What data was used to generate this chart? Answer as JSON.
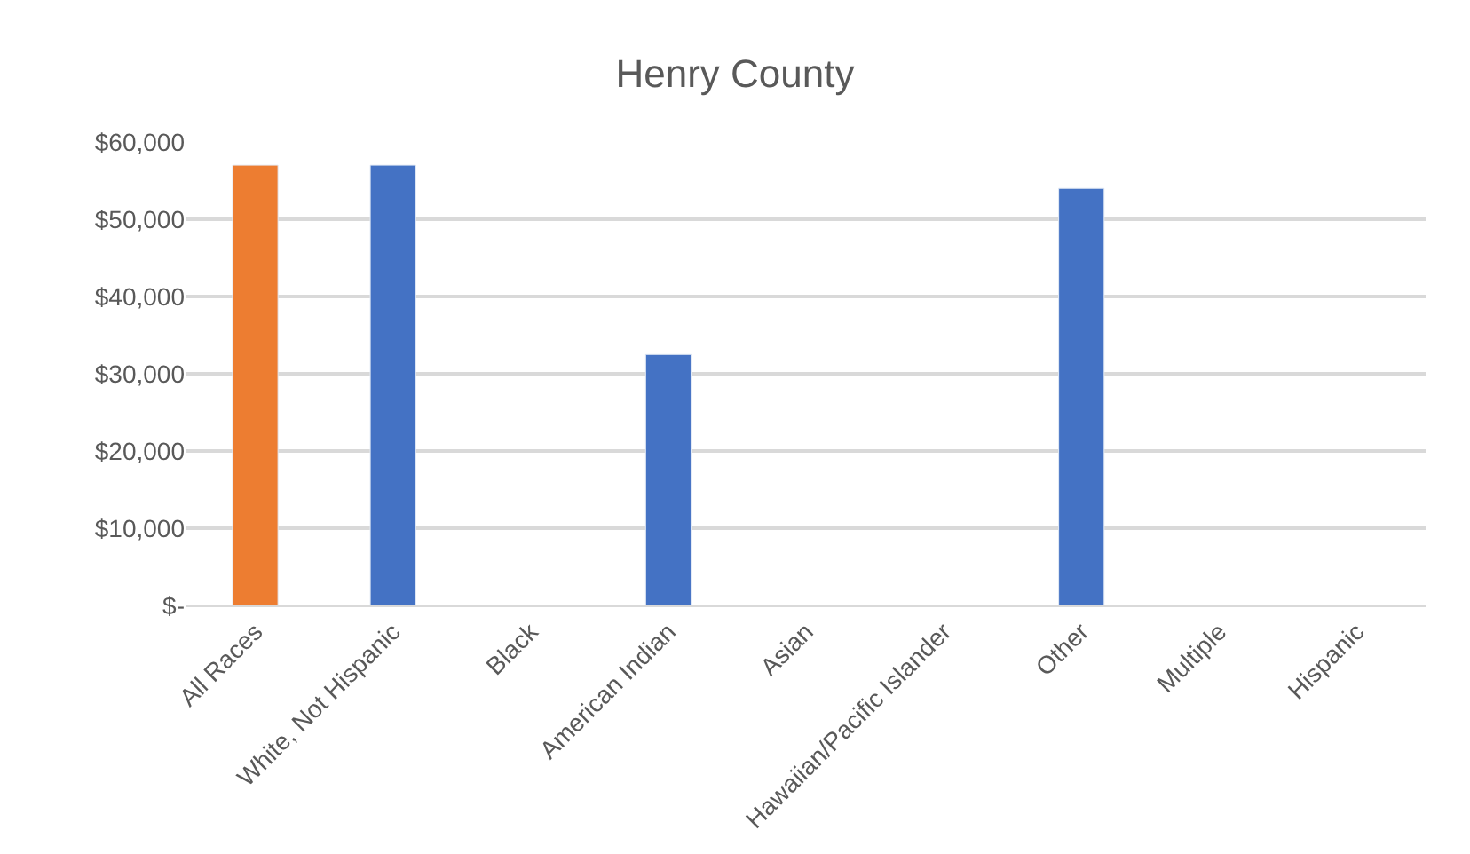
{
  "chart_data": {
    "type": "bar",
    "title": "Henry County",
    "categories": [
      "All Races",
      "White, Not Hispanic",
      "Black",
      "American Indian",
      "Asian",
      "Hawaiian/Pacific Islander",
      "Other",
      "Multiple",
      "Hispanic"
    ],
    "values": [
      57000,
      57000,
      null,
      32500,
      null,
      null,
      54000,
      null,
      null
    ],
    "colors": [
      "#ed7d31",
      "#4472c4",
      "#4472c4",
      "#4472c4",
      "#4472c4",
      "#4472c4",
      "#4472c4",
      "#4472c4",
      "#4472c4"
    ],
    "ylim": [
      0,
      60000
    ],
    "yticks": [
      {
        "value": 0,
        "label": "$-"
      },
      {
        "value": 10000,
        "label": "$10,000"
      },
      {
        "value": 20000,
        "label": "$20,000"
      },
      {
        "value": 30000,
        "label": "$30,000"
      },
      {
        "value": 40000,
        "label": "$40,000"
      },
      {
        "value": 50000,
        "label": "$50,000"
      },
      {
        "value": 60000,
        "label": "$60,000"
      }
    ],
    "grid": "y",
    "legend": false
  }
}
